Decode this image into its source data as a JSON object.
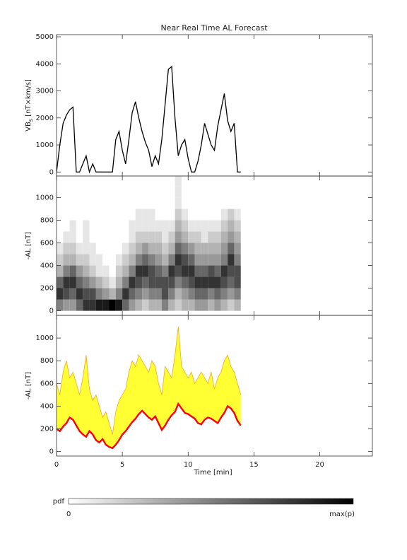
{
  "chart_data": [
    {
      "type": "line",
      "title": "Near Real Time AL Forecast",
      "ylabel": [
        "VB",
        "s",
        " [nT×km/s]"
      ],
      "xlim": [
        0,
        24
      ],
      "xticks": [
        0,
        5,
        10,
        15,
        20
      ],
      "ylim": [
        -150,
        5080
      ],
      "yticks": [
        0,
        1000,
        2000,
        3000,
        4000,
        5000
      ],
      "x": [
        0,
        0.25,
        0.5,
        0.75,
        1,
        1.25,
        1.5,
        1.75,
        2,
        2.25,
        2.5,
        2.75,
        3,
        3.25,
        3.5,
        3.75,
        4,
        4.25,
        4.5,
        4.75,
        5,
        5.25,
        5.5,
        5.75,
        6,
        6.25,
        6.5,
        6.75,
        7,
        7.25,
        7.5,
        7.75,
        8,
        8.25,
        8.5,
        8.75,
        9,
        9.25,
        9.5,
        9.75,
        10,
        10.25,
        10.5,
        10.75,
        11,
        11.25,
        11.5,
        11.75,
        12,
        12.25,
        12.5,
        12.75,
        13,
        13.25,
        13.5,
        13.75,
        14
      ],
      "series": [
        {
          "color": "#000000",
          "values": [
            0,
            1000,
            1800,
            2100,
            2300,
            2400,
            0,
            0,
            300,
            600,
            0,
            300,
            0,
            0,
            0,
            0,
            0,
            0,
            1200,
            1500,
            800,
            300,
            1200,
            2200,
            2600,
            2000,
            1500,
            1100,
            800,
            200,
            600,
            300,
            1200,
            2500,
            3800,
            3900,
            2000,
            600,
            1000,
            1200,
            500,
            0,
            0,
            400,
            1000,
            1800,
            1400,
            1000,
            800,
            1700,
            2300,
            2900,
            1900,
            1500,
            1800,
            0,
            0
          ]
        }
      ]
    },
    {
      "type": "heatmap",
      "ylabel": "-AL [nT]",
      "xlim": [
        0,
        24
      ],
      "xticks": [
        0,
        5,
        10,
        15,
        20
      ],
      "ylim": [
        -40,
        1190
      ],
      "yticks": [
        0,
        200,
        400,
        600,
        800,
        1000
      ],
      "xbins": [
        0,
        0.5,
        1,
        1.5,
        2,
        2.5,
        3,
        3.5,
        4,
        4.5,
        5,
        5.5,
        6,
        6.5,
        7,
        7.5,
        8,
        8.5,
        9,
        9.5,
        10,
        10.5,
        11,
        11.5,
        12,
        12.5,
        13,
        13.5,
        14
      ],
      "ybins": [
        0,
        100,
        200,
        300,
        400,
        500,
        600,
        700,
        800,
        900,
        1000,
        1100,
        1200
      ],
      "zlim": [
        0,
        1
      ],
      "z": [
        [
          0.5,
          0.8,
          0.6,
          0.3,
          0.2,
          0.1,
          0,
          0,
          0,
          0,
          0,
          0
        ],
        [
          0.4,
          0.7,
          0.8,
          0.5,
          0.3,
          0.2,
          0.1,
          0,
          0,
          0,
          0,
          0
        ],
        [
          0.4,
          0.6,
          0.8,
          0.6,
          0.3,
          0.2,
          0.1,
          0.1,
          0,
          0,
          0,
          0
        ],
        [
          0.6,
          0.8,
          0.6,
          0.4,
          0.2,
          0.1,
          0,
          0,
          0,
          0,
          0,
          0
        ],
        [
          0.8,
          0.7,
          0.5,
          0.3,
          0.2,
          0.1,
          0.1,
          0.1,
          0,
          0,
          0,
          0
        ],
        [
          0.8,
          0.7,
          0.4,
          0.2,
          0.1,
          0.1,
          0,
          0,
          0,
          0,
          0,
          0
        ],
        [
          0.9,
          0.5,
          0.3,
          0.1,
          0.1,
          0,
          0,
          0,
          0,
          0,
          0,
          0
        ],
        [
          0.9,
          0.4,
          0.2,
          0.1,
          0,
          0,
          0,
          0,
          0,
          0,
          0,
          0
        ],
        [
          1,
          0.3,
          0.1,
          0,
          0,
          0,
          0,
          0,
          0,
          0,
          0,
          0
        ],
        [
          0.9,
          0.5,
          0.3,
          0.2,
          0.1,
          0,
          0,
          0,
          0,
          0,
          0,
          0
        ],
        [
          0.6,
          0.8,
          0.5,
          0.3,
          0.2,
          0.1,
          0,
          0,
          0,
          0,
          0,
          0
        ],
        [
          0.4,
          0.6,
          0.8,
          0.5,
          0.3,
          0.2,
          0.1,
          0.1,
          0,
          0,
          0,
          0
        ],
        [
          0.3,
          0.5,
          0.7,
          0.8,
          0.5,
          0.3,
          0.2,
          0.1,
          0.1,
          0,
          0,
          0
        ],
        [
          0.2,
          0.4,
          0.6,
          0.8,
          0.6,
          0.4,
          0.2,
          0.1,
          0.1,
          0,
          0,
          0
        ],
        [
          0.3,
          0.5,
          0.7,
          0.7,
          0.5,
          0.3,
          0.2,
          0.1,
          0.1,
          0,
          0,
          0
        ],
        [
          0.3,
          0.5,
          0.7,
          0.6,
          0.4,
          0.3,
          0.2,
          0.1,
          0,
          0,
          0,
          0
        ],
        [
          0.5,
          0.7,
          0.7,
          0.5,
          0.3,
          0.2,
          0.1,
          0.1,
          0,
          0,
          0,
          0
        ],
        [
          0.3,
          0.5,
          0.7,
          0.8,
          0.5,
          0.3,
          0.2,
          0.1,
          0,
          0,
          0,
          0
        ],
        [
          0.2,
          0.3,
          0.5,
          0.7,
          0.8,
          0.6,
          0.4,
          0.3,
          0.2,
          0.1,
          0.1,
          0.1
        ],
        [
          0.3,
          0.4,
          0.6,
          0.8,
          0.7,
          0.5,
          0.3,
          0.2,
          0.1,
          0,
          0,
          0
        ],
        [
          0.3,
          0.5,
          0.7,
          0.8,
          0.6,
          0.4,
          0.2,
          0.1,
          0,
          0,
          0,
          0
        ],
        [
          0.4,
          0.6,
          0.8,
          0.6,
          0.4,
          0.3,
          0.2,
          0.1,
          0,
          0,
          0,
          0
        ],
        [
          0.4,
          0.6,
          0.8,
          0.6,
          0.4,
          0.3,
          0.1,
          0.1,
          0,
          0,
          0,
          0
        ],
        [
          0.3,
          0.5,
          0.8,
          0.7,
          0.4,
          0.3,
          0.2,
          0.1,
          0,
          0,
          0,
          0
        ],
        [
          0.4,
          0.6,
          0.8,
          0.6,
          0.4,
          0.3,
          0.2,
          0.1,
          0,
          0,
          0,
          0
        ],
        [
          0.3,
          0.5,
          0.7,
          0.8,
          0.5,
          0.4,
          0.3,
          0.2,
          0.1,
          0,
          0,
          0
        ],
        [
          0.2,
          0.4,
          0.6,
          0.7,
          0.8,
          0.6,
          0.4,
          0.3,
          0.2,
          0,
          0,
          0
        ],
        [
          0.3,
          0.5,
          0.7,
          0.7,
          0.5,
          0.4,
          0.3,
          0.2,
          0.1,
          0,
          0,
          0
        ]
      ],
      "colorbar": {
        "label": "pdf",
        "min_label": "0",
        "max_label": "max(p)"
      }
    },
    {
      "type": "band",
      "ylabel": "-AL [nT]",
      "xlabel": "Time [min]",
      "xlim": [
        0,
        24
      ],
      "xticks": [
        0,
        5,
        10,
        15,
        20
      ],
      "ylim": [
        -40,
        1200
      ],
      "yticks": [
        0,
        200,
        400,
        600,
        800,
        1000
      ],
      "fill_color": "#ffff33",
      "x": [
        0,
        0.25,
        0.5,
        0.75,
        1,
        1.25,
        1.5,
        1.75,
        2,
        2.25,
        2.5,
        2.75,
        3,
        3.25,
        3.5,
        3.75,
        4,
        4.25,
        4.5,
        4.75,
        5,
        5.25,
        5.5,
        5.75,
        6,
        6.25,
        6.5,
        6.75,
        7,
        7.25,
        7.5,
        7.75,
        8,
        8.25,
        8.5,
        8.75,
        9,
        9.25,
        9.5,
        9.75,
        10,
        10.25,
        10.5,
        10.75,
        11,
        11.25,
        11.5,
        11.75,
        12,
        12.25,
        12.5,
        12.75,
        13,
        13.25,
        13.5,
        13.75,
        14
      ],
      "series": [
        {
          "color": "#ff0000",
          "values": [
            200,
            180,
            220,
            250,
            300,
            280,
            230,
            180,
            150,
            130,
            180,
            150,
            100,
            80,
            110,
            60,
            40,
            30,
            60,
            100,
            150,
            180,
            220,
            260,
            290,
            330,
            360,
            330,
            300,
            280,
            310,
            250,
            190,
            230,
            280,
            320,
            350,
            420,
            380,
            340,
            330,
            310,
            290,
            250,
            240,
            280,
            300,
            290,
            270,
            250,
            300,
            340,
            400,
            380,
            340,
            270,
            230
          ]
        },
        {
          "color": "#f5a623",
          "values": [
            600,
            500,
            700,
            800,
            650,
            700,
            600,
            500,
            650,
            850,
            550,
            450,
            500,
            400,
            300,
            350,
            250,
            150,
            350,
            450,
            500,
            550,
            700,
            800,
            750,
            850,
            800,
            750,
            700,
            800,
            750,
            600,
            500,
            750,
            700,
            650,
            850,
            1100,
            750,
            700,
            650,
            700,
            600,
            650,
            700,
            650,
            600,
            700,
            550,
            650,
            700,
            800,
            850,
            750,
            700,
            600,
            500
          ]
        }
      ]
    }
  ]
}
